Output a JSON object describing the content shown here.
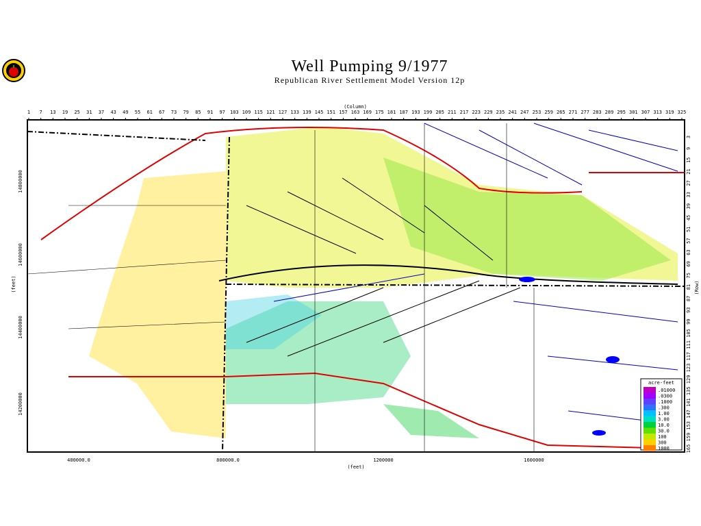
{
  "title": "Well Pumping  9/1977",
  "subtitle": "Republican River Settlement Model Version 12p",
  "top_axis": {
    "label": "(Column)",
    "ticks": [
      1,
      7,
      13,
      19,
      25,
      31,
      37,
      43,
      49,
      55,
      61,
      67,
      73,
      79,
      85,
      91,
      97,
      103,
      109,
      115,
      121,
      127,
      133,
      139,
      145,
      151,
      157,
      163,
      169,
      175,
      181,
      187,
      193,
      199,
      205,
      211,
      217,
      223,
      229,
      235,
      241,
      247,
      253,
      259,
      265,
      271,
      277,
      283,
      289,
      295,
      301,
      307,
      313,
      319,
      325
    ]
  },
  "right_axis": {
    "label": "(Row)",
    "ticks": [
      3,
      9,
      15,
      21,
      27,
      33,
      39,
      45,
      51,
      57,
      63,
      69,
      75,
      81,
      87,
      93,
      99,
      105,
      111,
      117,
      123,
      129,
      135,
      141,
      147,
      153,
      159,
      165
    ]
  },
  "bottom_axis": {
    "label": "(feet)",
    "ticks": [
      "400000.0",
      "800000.0",
      "1200000",
      "1600000"
    ]
  },
  "left_axis": {
    "label": "(feet)",
    "ticks": [
      "14800000",
      "14600000",
      "14400000",
      "14200000"
    ]
  },
  "legend": {
    "title": "acre-feet",
    "items": [
      {
        "label": ".01000",
        "color": "#c000c0"
      },
      {
        "label": ".0300",
        "color": "#a000ff"
      },
      {
        "label": ".1000",
        "color": "#6040ff"
      },
      {
        "label": ".300",
        "color": "#3070ff"
      },
      {
        "label": "1.00",
        "color": "#00c0ff"
      },
      {
        "label": "3.00",
        "color": "#00e0c0"
      },
      {
        "label": "10.0",
        "color": "#00d040"
      },
      {
        "label": "30.0",
        "color": "#60e000"
      },
      {
        "label": "100",
        "color": "#c0e800"
      },
      {
        "label": "300",
        "color": "#ffd000"
      },
      {
        "label": "1000",
        "color": "#ff8000"
      }
    ]
  }
}
